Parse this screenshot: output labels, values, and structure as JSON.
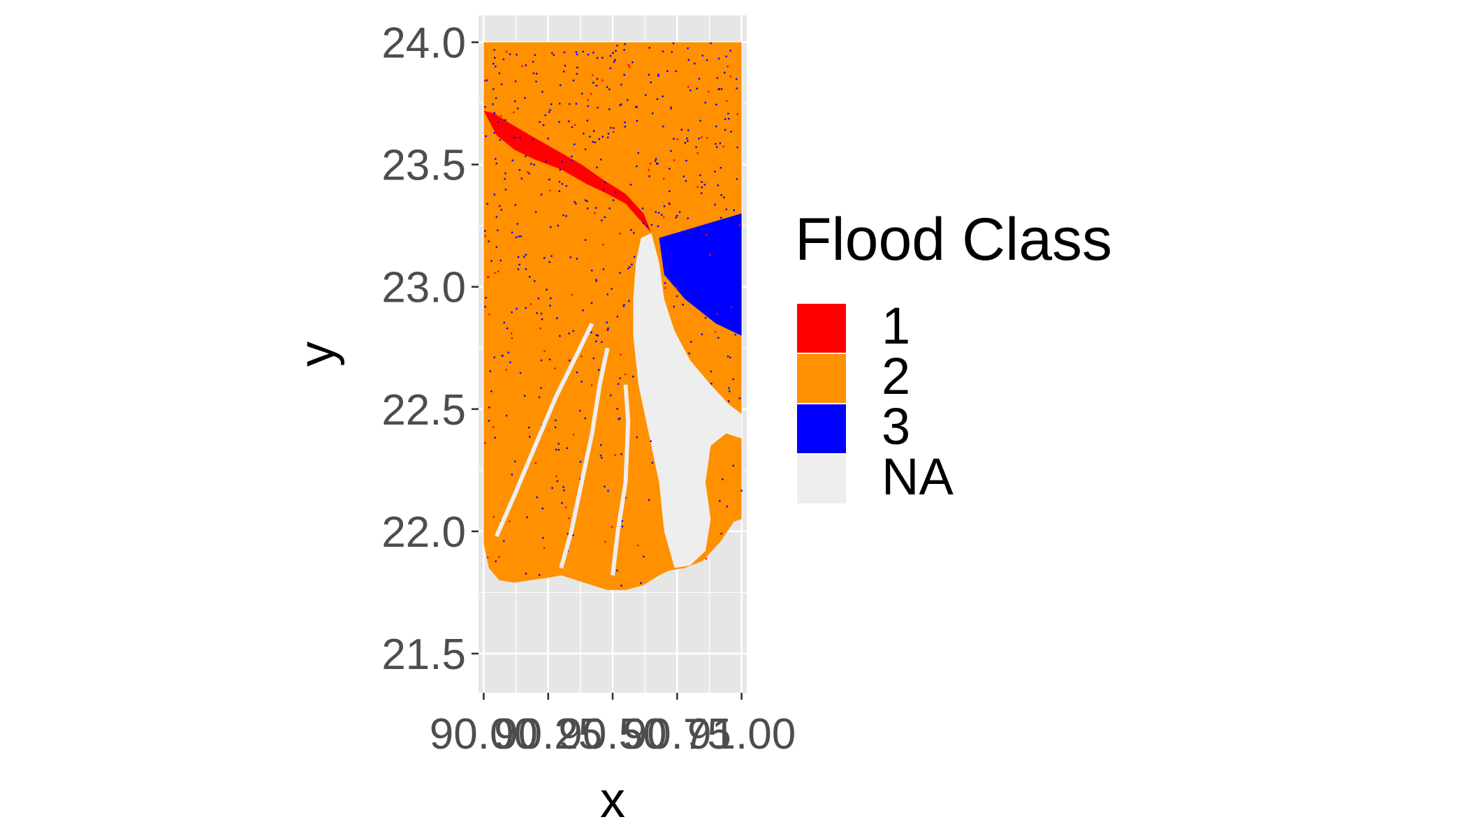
{
  "chart_data": {
    "type": "heatmap",
    "title": "",
    "xlabel": "x",
    "ylabel": "y",
    "x_ticks": [
      "90.00",
      "90.25",
      "90.50",
      "90.75",
      "91.00"
    ],
    "y_ticks": [
      "21.5",
      "22.0",
      "22.5",
      "23.0",
      "23.5",
      "24.0"
    ],
    "x_range": [
      89.98,
      91.02
    ],
    "ylim": [
      21.34,
      24.11
    ],
    "grid": true,
    "legend": {
      "title": "Flood Class",
      "position": "right",
      "entries": [
        {
          "label": "1",
          "color": "#ff0000"
        },
        {
          "label": "2",
          "color": "#ff9000"
        },
        {
          "label": "3",
          "color": "#0000ff"
        },
        {
          "label": "NA",
          "color": "#eeeeee"
        }
      ]
    },
    "colors": {
      "panel_background": "#e6e6e6",
      "grid_line": "#ffffff",
      "class_1": "#ff0000",
      "class_2": "#ff9000",
      "class_3": "#0000ff",
      "na": "#eeeeee"
    },
    "raster_extent": {
      "x": [
        90.0,
        91.0
      ],
      "y": [
        21.75,
        24.0
      ]
    },
    "features": {
      "land": [
        [
          90.0,
          24.0
        ],
        [
          91.0,
          24.0
        ],
        [
          91.0,
          22.05
        ],
        [
          90.97,
          22.04
        ],
        [
          90.92,
          21.96
        ],
        [
          90.85,
          21.88
        ],
        [
          90.78,
          21.85
        ],
        [
          90.72,
          21.84
        ],
        [
          90.68,
          21.82
        ],
        [
          90.62,
          21.78
        ],
        [
          90.55,
          21.76
        ],
        [
          90.48,
          21.76
        ],
        [
          90.42,
          21.78
        ],
        [
          90.36,
          21.8
        ],
        [
          90.3,
          21.82
        ],
        [
          90.25,
          21.81
        ],
        [
          90.18,
          21.8
        ],
        [
          90.12,
          21.79
        ],
        [
          90.06,
          21.8
        ],
        [
          90.02,
          21.85
        ],
        [
          90.0,
          21.95
        ]
      ],
      "estuary_na": [
        [
          90.61,
          23.2
        ],
        [
          90.65,
          23.22
        ],
        [
          90.68,
          23.1
        ],
        [
          90.7,
          22.95
        ],
        [
          90.74,
          22.82
        ],
        [
          90.8,
          22.7
        ],
        [
          90.88,
          22.6
        ],
        [
          90.95,
          22.52
        ],
        [
          91.0,
          22.48
        ],
        [
          91.0,
          22.38
        ],
        [
          90.94,
          22.4
        ],
        [
          90.88,
          22.35
        ],
        [
          90.86,
          22.2
        ],
        [
          90.88,
          22.05
        ],
        [
          90.86,
          21.92
        ],
        [
          90.8,
          21.86
        ],
        [
          90.74,
          21.85
        ],
        [
          90.7,
          22.0
        ],
        [
          90.68,
          22.2
        ],
        [
          90.64,
          22.4
        ],
        [
          90.6,
          22.6
        ],
        [
          90.58,
          22.8
        ],
        [
          90.58,
          22.95
        ],
        [
          90.59,
          23.1
        ]
      ],
      "river_class1": [
        [
          90.0,
          23.72
        ],
        [
          90.05,
          23.62
        ],
        [
          90.12,
          23.56
        ],
        [
          90.2,
          23.52
        ],
        [
          90.3,
          23.48
        ],
        [
          90.4,
          23.42
        ],
        [
          90.48,
          23.38
        ],
        [
          90.55,
          23.34
        ],
        [
          90.6,
          23.28
        ],
        [
          90.65,
          23.22
        ],
        [
          90.62,
          23.3
        ],
        [
          90.55,
          23.38
        ],
        [
          90.46,
          23.44
        ],
        [
          90.38,
          23.5
        ],
        [
          90.28,
          23.56
        ],
        [
          90.18,
          23.62
        ],
        [
          90.1,
          23.67
        ],
        [
          90.04,
          23.71
        ]
      ],
      "blue_region": [
        [
          90.68,
          23.2
        ],
        [
          91.0,
          23.3
        ],
        [
          91.0,
          22.8
        ],
        [
          90.9,
          22.85
        ],
        [
          90.78,
          22.95
        ],
        [
          90.7,
          23.05
        ]
      ]
    }
  }
}
